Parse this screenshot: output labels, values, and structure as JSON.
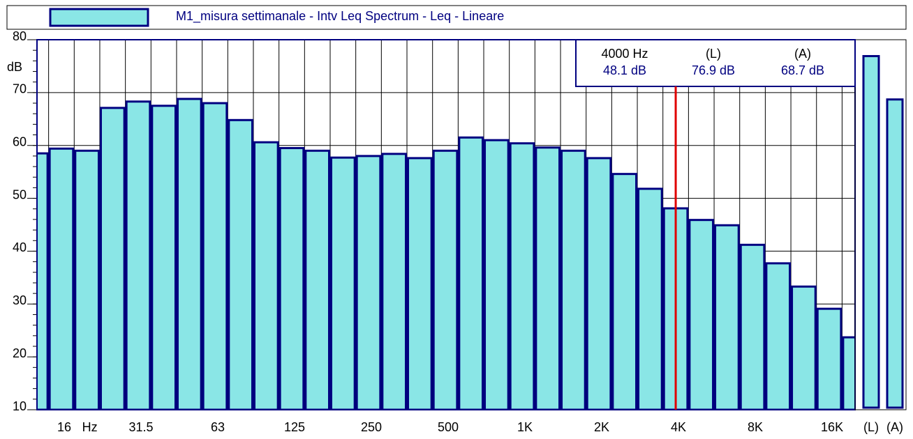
{
  "chart_data": {
    "type": "bar",
    "title": "M1_misura settimanale - Intv Leq Spectrum - Leq - Lineare",
    "ylabel": "dB",
    "categories": [
      null,
      "16",
      "Hz",
      null,
      "31.5",
      null,
      null,
      "63",
      null,
      null,
      "125",
      null,
      null,
      "250",
      null,
      null,
      "500",
      null,
      null,
      "1K",
      null,
      null,
      "2K",
      null,
      null,
      "4K",
      null,
      null,
      "8K",
      null,
      null,
      "16K",
      null
    ],
    "series": [
      {
        "name": "M1_misura settimanale - Intv Leq Spectrum - Leq - Lineare",
        "color": "#8ae6e6",
        "edge": "#000080",
        "values": [
          58.5,
          59.4,
          59.0,
          67.1,
          68.3,
          67.5,
          68.8,
          68.0,
          64.8,
          60.6,
          59.5,
          59.0,
          57.7,
          58.0,
          58.4,
          57.6,
          59.0,
          61.5,
          61.0,
          60.4,
          59.6,
          59.0,
          57.6,
          54.6,
          51.8,
          48.1,
          45.9,
          44.9,
          41.2,
          37.7,
          33.3,
          29.1,
          23.7
        ]
      }
    ],
    "overall": {
      "categories": [
        "(L)",
        "(A)"
      ],
      "values": [
        76.9,
        68.7
      ],
      "value_labels": [
        "76.9 dB",
        "68.7 dB"
      ]
    },
    "cursor": {
      "category": "4K",
      "label": "4000 Hz",
      "value_label": "48.1 dB",
      "color": "#e00000"
    },
    "ylim": [
      10,
      80
    ],
    "yticks": [
      10,
      20,
      30,
      40,
      50,
      60,
      70,
      80
    ],
    "yminor": 2,
    "grid": true
  }
}
